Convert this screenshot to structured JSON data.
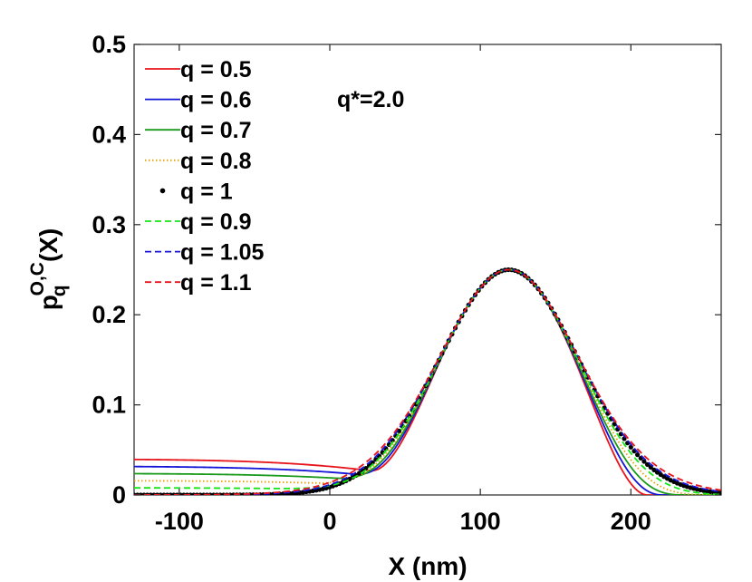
{
  "chart_data": {
    "type": "line",
    "xlabel": "X (nm)",
    "ylabel": {
      "base": "p",
      "sub": "q",
      "sup": "O,C",
      "suffix": "(X)"
    },
    "xlim": [
      -130,
      260
    ],
    "ylim": [
      0,
      0.5
    ],
    "xticks": [
      -100,
      0,
      100,
      200
    ],
    "yticks": [
      0,
      0.1,
      0.2,
      0.3,
      0.4,
      0.5
    ],
    "ytick_labels": [
      "0",
      "0.1",
      "0.2",
      "0.3",
      "0.4",
      "0.5"
    ],
    "grid": false,
    "legend_position": "top-left",
    "annotation": "q*=2.0",
    "peak": {
      "x": 119,
      "y": 0.25
    },
    "series": [
      {
        "name": "q = 0.5",
        "q": 0.5,
        "color": "#e8141c",
        "style": "solid"
      },
      {
        "name": "q = 0.6",
        "q": 0.6,
        "color": "#1414d8",
        "style": "solid"
      },
      {
        "name": "q = 0.7",
        "q": 0.7,
        "color": "#1a9a1a",
        "style": "solid"
      },
      {
        "name": "q = 0.8",
        "q": 0.8,
        "color": "#e8a000",
        "style": "dotted"
      },
      {
        "name": "q = 1",
        "q": 1.0,
        "color": "#000000",
        "style": "markers"
      },
      {
        "name": "q = 0.9",
        "q": 0.9,
        "color": "#14e614",
        "style": "dashed"
      },
      {
        "name": "q = 1.05",
        "q": 1.05,
        "color": "#1414d8",
        "style": "dashed"
      },
      {
        "name": "q = 1.1",
        "q": 1.1,
        "color": "#e8141c",
        "style": "dashed"
      }
    ]
  }
}
